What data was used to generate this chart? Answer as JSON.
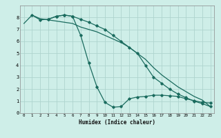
{
  "bg_color": "#ceeee8",
  "grid_color": "#aed4ce",
  "line_color": "#1a6b5e",
  "xlabel": "Humidex (Indice chaleur)",
  "xlim": [
    -0.5,
    23.5
  ],
  "ylim": [
    0,
    9
  ],
  "yticks": [
    0,
    1,
    2,
    3,
    4,
    5,
    6,
    7,
    8
  ],
  "xticks": [
    0,
    1,
    2,
    3,
    4,
    5,
    6,
    7,
    8,
    9,
    10,
    11,
    12,
    13,
    14,
    15,
    16,
    17,
    18,
    19,
    20,
    21,
    22,
    23
  ],
  "line1_x": [
    0,
    1,
    2,
    3,
    4,
    5,
    6,
    7,
    8,
    9,
    10,
    11,
    12,
    13,
    14,
    15,
    16,
    17,
    18,
    19,
    20,
    21,
    22,
    23
  ],
  "line1_y": [
    7.5,
    8.2,
    7.9,
    7.8,
    7.7,
    7.6,
    7.5,
    7.2,
    7.0,
    6.8,
    6.5,
    6.2,
    5.9,
    5.5,
    5.0,
    4.5,
    3.8,
    3.2,
    2.7,
    2.2,
    1.8,
    1.4,
    1.1,
    0.55
  ],
  "line2_x": [
    1,
    2,
    3,
    4,
    5,
    6,
    7,
    8,
    9,
    10,
    11,
    12,
    13,
    14,
    15,
    16,
    17,
    18,
    19,
    20,
    21,
    22,
    23
  ],
  "line2_y": [
    8.2,
    7.8,
    7.85,
    8.1,
    8.2,
    8.1,
    6.5,
    4.2,
    2.2,
    0.9,
    0.5,
    0.55,
    1.2,
    1.35,
    1.4,
    1.5,
    1.5,
    1.45,
    1.4,
    1.2,
    1.05,
    0.9,
    0.85
  ],
  "line3_x": [
    3,
    4,
    5,
    6,
    7,
    8,
    9,
    10,
    11,
    12,
    13,
    14,
    15,
    16,
    17,
    18,
    19,
    20,
    21,
    22,
    23
  ],
  "line3_y": [
    7.85,
    8.1,
    8.2,
    8.1,
    7.85,
    7.6,
    7.3,
    7.0,
    6.5,
    6.0,
    5.5,
    5.0,
    4.0,
    3.0,
    2.5,
    2.0,
    1.6,
    1.3,
    1.0,
    0.8,
    0.55
  ]
}
